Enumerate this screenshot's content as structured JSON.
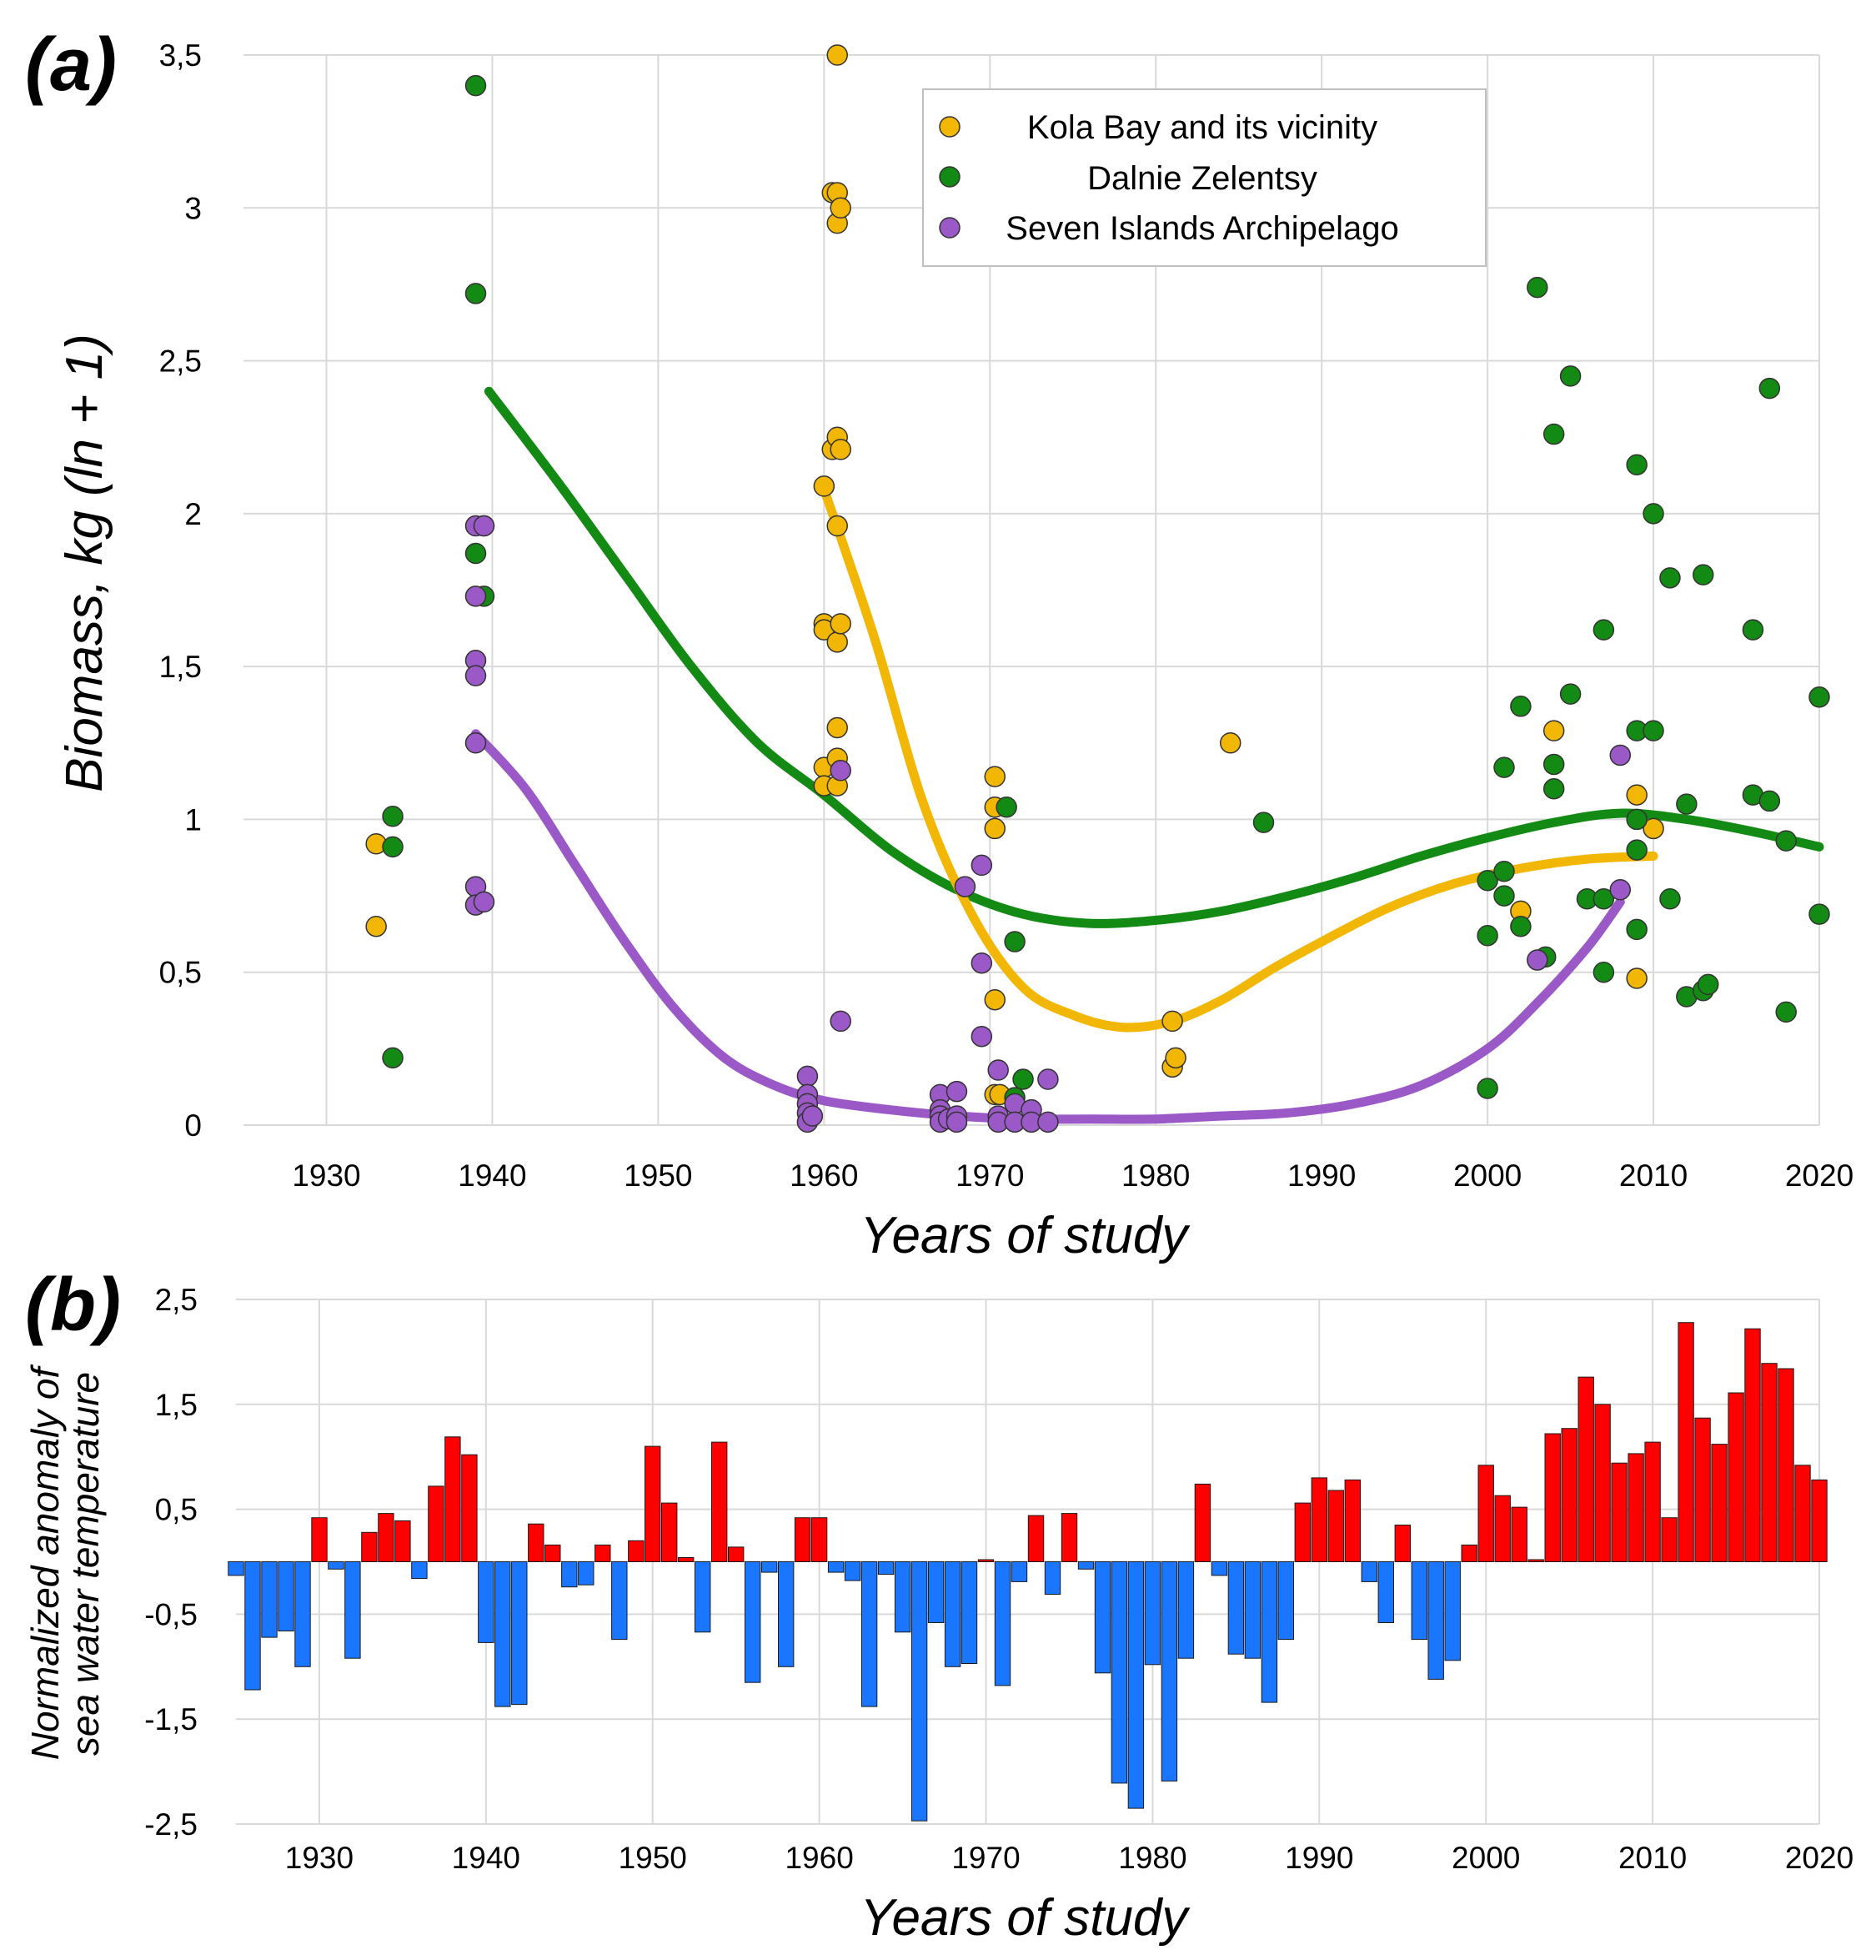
{
  "panel_a_label": "(a)",
  "panel_b_label": "(b)",
  "colors": {
    "kola": "#f2b705",
    "dalnie": "#138a13",
    "seven": "#9b59c8",
    "positive": "#ff0000",
    "negative": "#1a75ff",
    "grid": "#d9d9d9"
  },
  "chart_data": [
    {
      "type": "scatter",
      "title": "",
      "xlabel": "Years of study",
      "ylabel": "Biomass, kg (ln + 1)",
      "xlim": [
        1925,
        2020
      ],
      "ylim": [
        0,
        3.5
      ],
      "x_ticks": [
        "1930",
        "1940",
        "1950",
        "1960",
        "1970",
        "1980",
        "1990",
        "2000",
        "2010",
        "2020"
      ],
      "x_tick_values": [
        1930,
        1940,
        1950,
        1960,
        1970,
        1980,
        1990,
        2000,
        2010,
        2020
      ],
      "y_ticks": [
        "0",
        "0,5",
        "1",
        "1,5",
        "2",
        "2,5",
        "3",
        "3,5"
      ],
      "y_tick_values": [
        0,
        0.5,
        1,
        1.5,
        2,
        2.5,
        3,
        3.5
      ],
      "grid": true,
      "legend_position": "top-right",
      "series": [
        {
          "name": "Kola Bay and its vicinity",
          "color_key": "kola",
          "points": [
            [
              1933,
              0.92
            ],
            [
              1933,
              0.65
            ],
            [
              1960,
              2.09
            ],
            [
              1960,
              1.64
            ],
            [
              1960,
              1.62
            ],
            [
              1960,
              1.17
            ],
            [
              1960,
              1.11
            ],
            [
              1960.5,
              3.05
            ],
            [
              1960.5,
              2.21
            ],
            [
              1960.8,
              3.5
            ],
            [
              1960.8,
              3.05
            ],
            [
              1960.8,
              2.25
            ],
            [
              1960.8,
              1.96
            ],
            [
              1960.8,
              1.58
            ],
            [
              1960.8,
              1.3
            ],
            [
              1960.8,
              1.2
            ],
            [
              1960.8,
              1.11
            ],
            [
              1960.8,
              2.95
            ],
            [
              1961,
              3.0
            ],
            [
              1961,
              2.21
            ],
            [
              1961,
              1.64
            ],
            [
              1970.3,
              1.14
            ],
            [
              1970.3,
              1.04
            ],
            [
              1970.3,
              0.97
            ],
            [
              1970.3,
              0.41
            ],
            [
              1970.3,
              0.1
            ],
            [
              1970.6,
              0.1
            ],
            [
              1981,
              0.34
            ],
            [
              1981,
              0.19
            ],
            [
              1981.2,
              0.22
            ],
            [
              1984.5,
              1.25
            ],
            [
              2002,
              0.7
            ],
            [
              2004,
              1.29
            ],
            [
              2009,
              1.08
            ],
            [
              2009,
              0.48
            ],
            [
              2010,
              0.97
            ]
          ],
          "trend": [
            [
              1960,
              2.08
            ],
            [
              1963,
              1.6
            ],
            [
              1966,
              1.05
            ],
            [
              1969,
              0.68
            ],
            [
              1972,
              0.45
            ],
            [
              1975,
              0.36
            ],
            [
              1978,
              0.32
            ],
            [
              1981,
              0.34
            ],
            [
              1984,
              0.41
            ],
            [
              1987,
              0.51
            ],
            [
              1990,
              0.6
            ],
            [
              1994,
              0.71
            ],
            [
              1998,
              0.79
            ],
            [
              2002,
              0.84
            ],
            [
              2006,
              0.87
            ],
            [
              2010,
              0.88
            ]
          ]
        },
        {
          "name": "Dalnie Zelentsy",
          "color_key": "dalnie",
          "points": [
            [
              1934,
              1.01
            ],
            [
              1934,
              0.91
            ],
            [
              1934,
              0.22
            ],
            [
              1939,
              3.4
            ],
            [
              1939,
              2.72
            ],
            [
              1939,
              1.87
            ],
            [
              1939.5,
              1.96
            ],
            [
              1939.5,
              1.73
            ],
            [
              1971,
              1.04
            ],
            [
              1971.5,
              0.6
            ],
            [
              1971.5,
              0.09
            ],
            [
              1972,
              0.15
            ],
            [
              1986.5,
              0.99
            ],
            [
              2000,
              0.8
            ],
            [
              2000,
              0.62
            ],
            [
              2000,
              0.12
            ],
            [
              2001,
              1.17
            ],
            [
              2001,
              0.83
            ],
            [
              2001,
              0.75
            ],
            [
              2002,
              1.37
            ],
            [
              2002,
              0.65
            ],
            [
              2003,
              2.74
            ],
            [
              2003.5,
              0.55
            ],
            [
              2004,
              2.26
            ],
            [
              2004,
              1.18
            ],
            [
              2004,
              1.1
            ],
            [
              2005,
              2.45
            ],
            [
              2005,
              1.41
            ],
            [
              2006,
              0.74
            ],
            [
              2007,
              1.62
            ],
            [
              2007,
              0.74
            ],
            [
              2007,
              0.5
            ],
            [
              2009,
              2.16
            ],
            [
              2009,
              1.29
            ],
            [
              2009,
              1.0
            ],
            [
              2009,
              0.9
            ],
            [
              2009,
              0.64
            ],
            [
              2010,
              2.0
            ],
            [
              2010,
              1.29
            ],
            [
              2011,
              1.79
            ],
            [
              2011,
              0.74
            ],
            [
              2012,
              1.05
            ],
            [
              2012,
              0.42
            ],
            [
              2013,
              1.8
            ],
            [
              2013,
              0.44
            ],
            [
              2013.3,
              0.46
            ],
            [
              2016,
              1.62
            ],
            [
              2016,
              1.08
            ],
            [
              2017,
              2.41
            ],
            [
              2017,
              1.06
            ],
            [
              2018,
              0.93
            ],
            [
              2018,
              0.37
            ],
            [
              2020,
              1.4
            ],
            [
              2020,
              0.69
            ]
          ],
          "trend": [
            [
              1939.8,
              2.4
            ],
            [
              1944,
              2.1
            ],
            [
              1948,
              1.8
            ],
            [
              1952,
              1.5
            ],
            [
              1956,
              1.25
            ],
            [
              1960,
              1.08
            ],
            [
              1964,
              0.9
            ],
            [
              1968,
              0.77
            ],
            [
              1972,
              0.69
            ],
            [
              1976,
              0.66
            ],
            [
              1980,
              0.67
            ],
            [
              1984,
              0.7
            ],
            [
              1988,
              0.75
            ],
            [
              1992,
              0.81
            ],
            [
              1996,
              0.88
            ],
            [
              2000,
              0.94
            ],
            [
              2004,
              0.99
            ],
            [
              2008,
              1.02
            ],
            [
              2012,
              1.0
            ],
            [
              2016,
              0.96
            ],
            [
              2020,
              0.91
            ]
          ]
        },
        {
          "name": "Seven Islands Archipelago",
          "color_key": "seven",
          "points": [
            [
              1939,
              1.96
            ],
            [
              1939,
              1.73
            ],
            [
              1939,
              1.52
            ],
            [
              1939,
              1.47
            ],
            [
              1939,
              1.25
            ],
            [
              1939,
              0.78
            ],
            [
              1939,
              0.72
            ],
            [
              1939.5,
              1.96
            ],
            [
              1939.5,
              0.73
            ],
            [
              1959,
              0.16
            ],
            [
              1959,
              0.1
            ],
            [
              1959,
              0.07
            ],
            [
              1959,
              0.04
            ],
            [
              1959,
              0.01
            ],
            [
              1959.3,
              0.03
            ],
            [
              1961,
              1.16
            ],
            [
              1961,
              0.34
            ],
            [
              1967,
              0.1
            ],
            [
              1967,
              0.05
            ],
            [
              1967,
              0.03
            ],
            [
              1967,
              0.01
            ],
            [
              1967.5,
              0.02
            ],
            [
              1968,
              0.11
            ],
            [
              1968,
              0.03
            ],
            [
              1968,
              0.01
            ],
            [
              1968.5,
              0.78
            ],
            [
              1969.5,
              0.85
            ],
            [
              1969.5,
              0.53
            ],
            [
              1969.5,
              0.29
            ],
            [
              1970.5,
              0.18
            ],
            [
              1970.5,
              0.03
            ],
            [
              1970.5,
              0.01
            ],
            [
              1971.5,
              0.07
            ],
            [
              1971.5,
              0.01
            ],
            [
              1972.5,
              0.05
            ],
            [
              1972.5,
              0.01
            ],
            [
              1973.5,
              0.15
            ],
            [
              1973.5,
              0.01
            ],
            [
              2003,
              0.54
            ],
            [
              2008,
              1.21
            ],
            [
              2008,
              0.77
            ]
          ],
          "trend": [
            [
              1939,
              1.28
            ],
            [
              1942,
              1.1
            ],
            [
              1945,
              0.85
            ],
            [
              1948,
              0.6
            ],
            [
              1951,
              0.38
            ],
            [
              1954,
              0.22
            ],
            [
              1957,
              0.13
            ],
            [
              1960,
              0.08
            ],
            [
              1964,
              0.05
            ],
            [
              1968,
              0.03
            ],
            [
              1972,
              0.02
            ],
            [
              1976,
              0.02
            ],
            [
              1980,
              0.02
            ],
            [
              1984,
              0.03
            ],
            [
              1988,
              0.04
            ],
            [
              1992,
              0.07
            ],
            [
              1996,
              0.13
            ],
            [
              2000,
              0.25
            ],
            [
              2003,
              0.4
            ],
            [
              2006,
              0.58
            ],
            [
              2008,
              0.73
            ]
          ]
        }
      ]
    },
    {
      "type": "bar",
      "title": "",
      "xlabel": "Years of study",
      "ylabel": "Normalized anomaly of sea water temperature",
      "ylabel_lines": [
        "Normalized anomaly of",
        "sea water temperature"
      ],
      "xlim": [
        1925,
        2020
      ],
      "ylim": [
        -2.5,
        2.5
      ],
      "x_ticks": [
        "1930",
        "1940",
        "1950",
        "1960",
        "1970",
        "1980",
        "1990",
        "2000",
        "2010",
        "2020"
      ],
      "x_tick_values": [
        1930,
        1940,
        1950,
        1960,
        1970,
        1980,
        1990,
        2000,
        2010,
        2020
      ],
      "y_ticks": [
        "2,5",
        "1,5",
        "0,5",
        "-0,5",
        "-1,5",
        "-2,5"
      ],
      "y_tick_values": [
        2.5,
        1.5,
        0.5,
        -0.5,
        -1.5,
        -2.5
      ],
      "grid": true,
      "categories": [
        1925,
        1926,
        1927,
        1928,
        1929,
        1930,
        1931,
        1932,
        1933,
        1934,
        1935,
        1936,
        1937,
        1938,
        1939,
        1940,
        1941,
        1942,
        1943,
        1944,
        1945,
        1946,
        1947,
        1948,
        1949,
        1950,
        1951,
        1952,
        1953,
        1954,
        1955,
        1956,
        1957,
        1958,
        1959,
        1960,
        1961,
        1962,
        1963,
        1964,
        1965,
        1966,
        1967,
        1968,
        1969,
        1970,
        1971,
        1972,
        1973,
        1974,
        1975,
        1976,
        1977,
        1978,
        1979,
        1980,
        1981,
        1982,
        1983,
        1984,
        1985,
        1986,
        1987,
        1988,
        1989,
        1990,
        1991,
        1992,
        1993,
        1994,
        1995,
        1996,
        1997,
        1998,
        1999,
        2000,
        2001,
        2002,
        2003,
        2004,
        2005,
        2006,
        2007,
        2008,
        2009,
        2010,
        2011,
        2012,
        2013,
        2014,
        2015,
        2016,
        2017,
        2018,
        2019,
        2020
      ],
      "values": [
        -0.13,
        -1.22,
        -0.72,
        -0.66,
        -1.0,
        0.42,
        -0.07,
        -0.92,
        0.28,
        0.46,
        0.39,
        -0.16,
        0.72,
        1.19,
        1.02,
        -0.77,
        -1.38,
        -1.36,
        0.36,
        0.16,
        -0.24,
        -0.22,
        0.16,
        -0.74,
        0.2,
        1.1,
        0.56,
        0.04,
        -0.67,
        1.14,
        0.14,
        -1.15,
        -0.1,
        -1.0,
        0.42,
        0.42,
        -0.1,
        -0.18,
        -1.38,
        -0.12,
        -0.67,
        -2.47,
        -0.58,
        -1.0,
        -0.97,
        0.02,
        -1.18,
        -0.19,
        0.44,
        -0.31,
        0.46,
        -0.07,
        -1.06,
        -2.11,
        -2.35,
        -0.98,
        -2.09,
        -0.92,
        0.74,
        -0.13,
        -0.88,
        -0.92,
        -1.34,
        -0.74,
        0.56,
        0.8,
        0.68,
        0.78,
        -0.19,
        -0.58,
        0.35,
        -0.74,
        -1.12,
        -0.94,
        0.16,
        0.92,
        0.63,
        0.52,
        0.02,
        1.22,
        1.27,
        1.76,
        1.5,
        0.94,
        1.03,
        1.14,
        0.42,
        2.28,
        1.37,
        1.12,
        1.61,
        2.22,
        1.89,
        1.84,
        0.92,
        0.78
      ]
    }
  ]
}
